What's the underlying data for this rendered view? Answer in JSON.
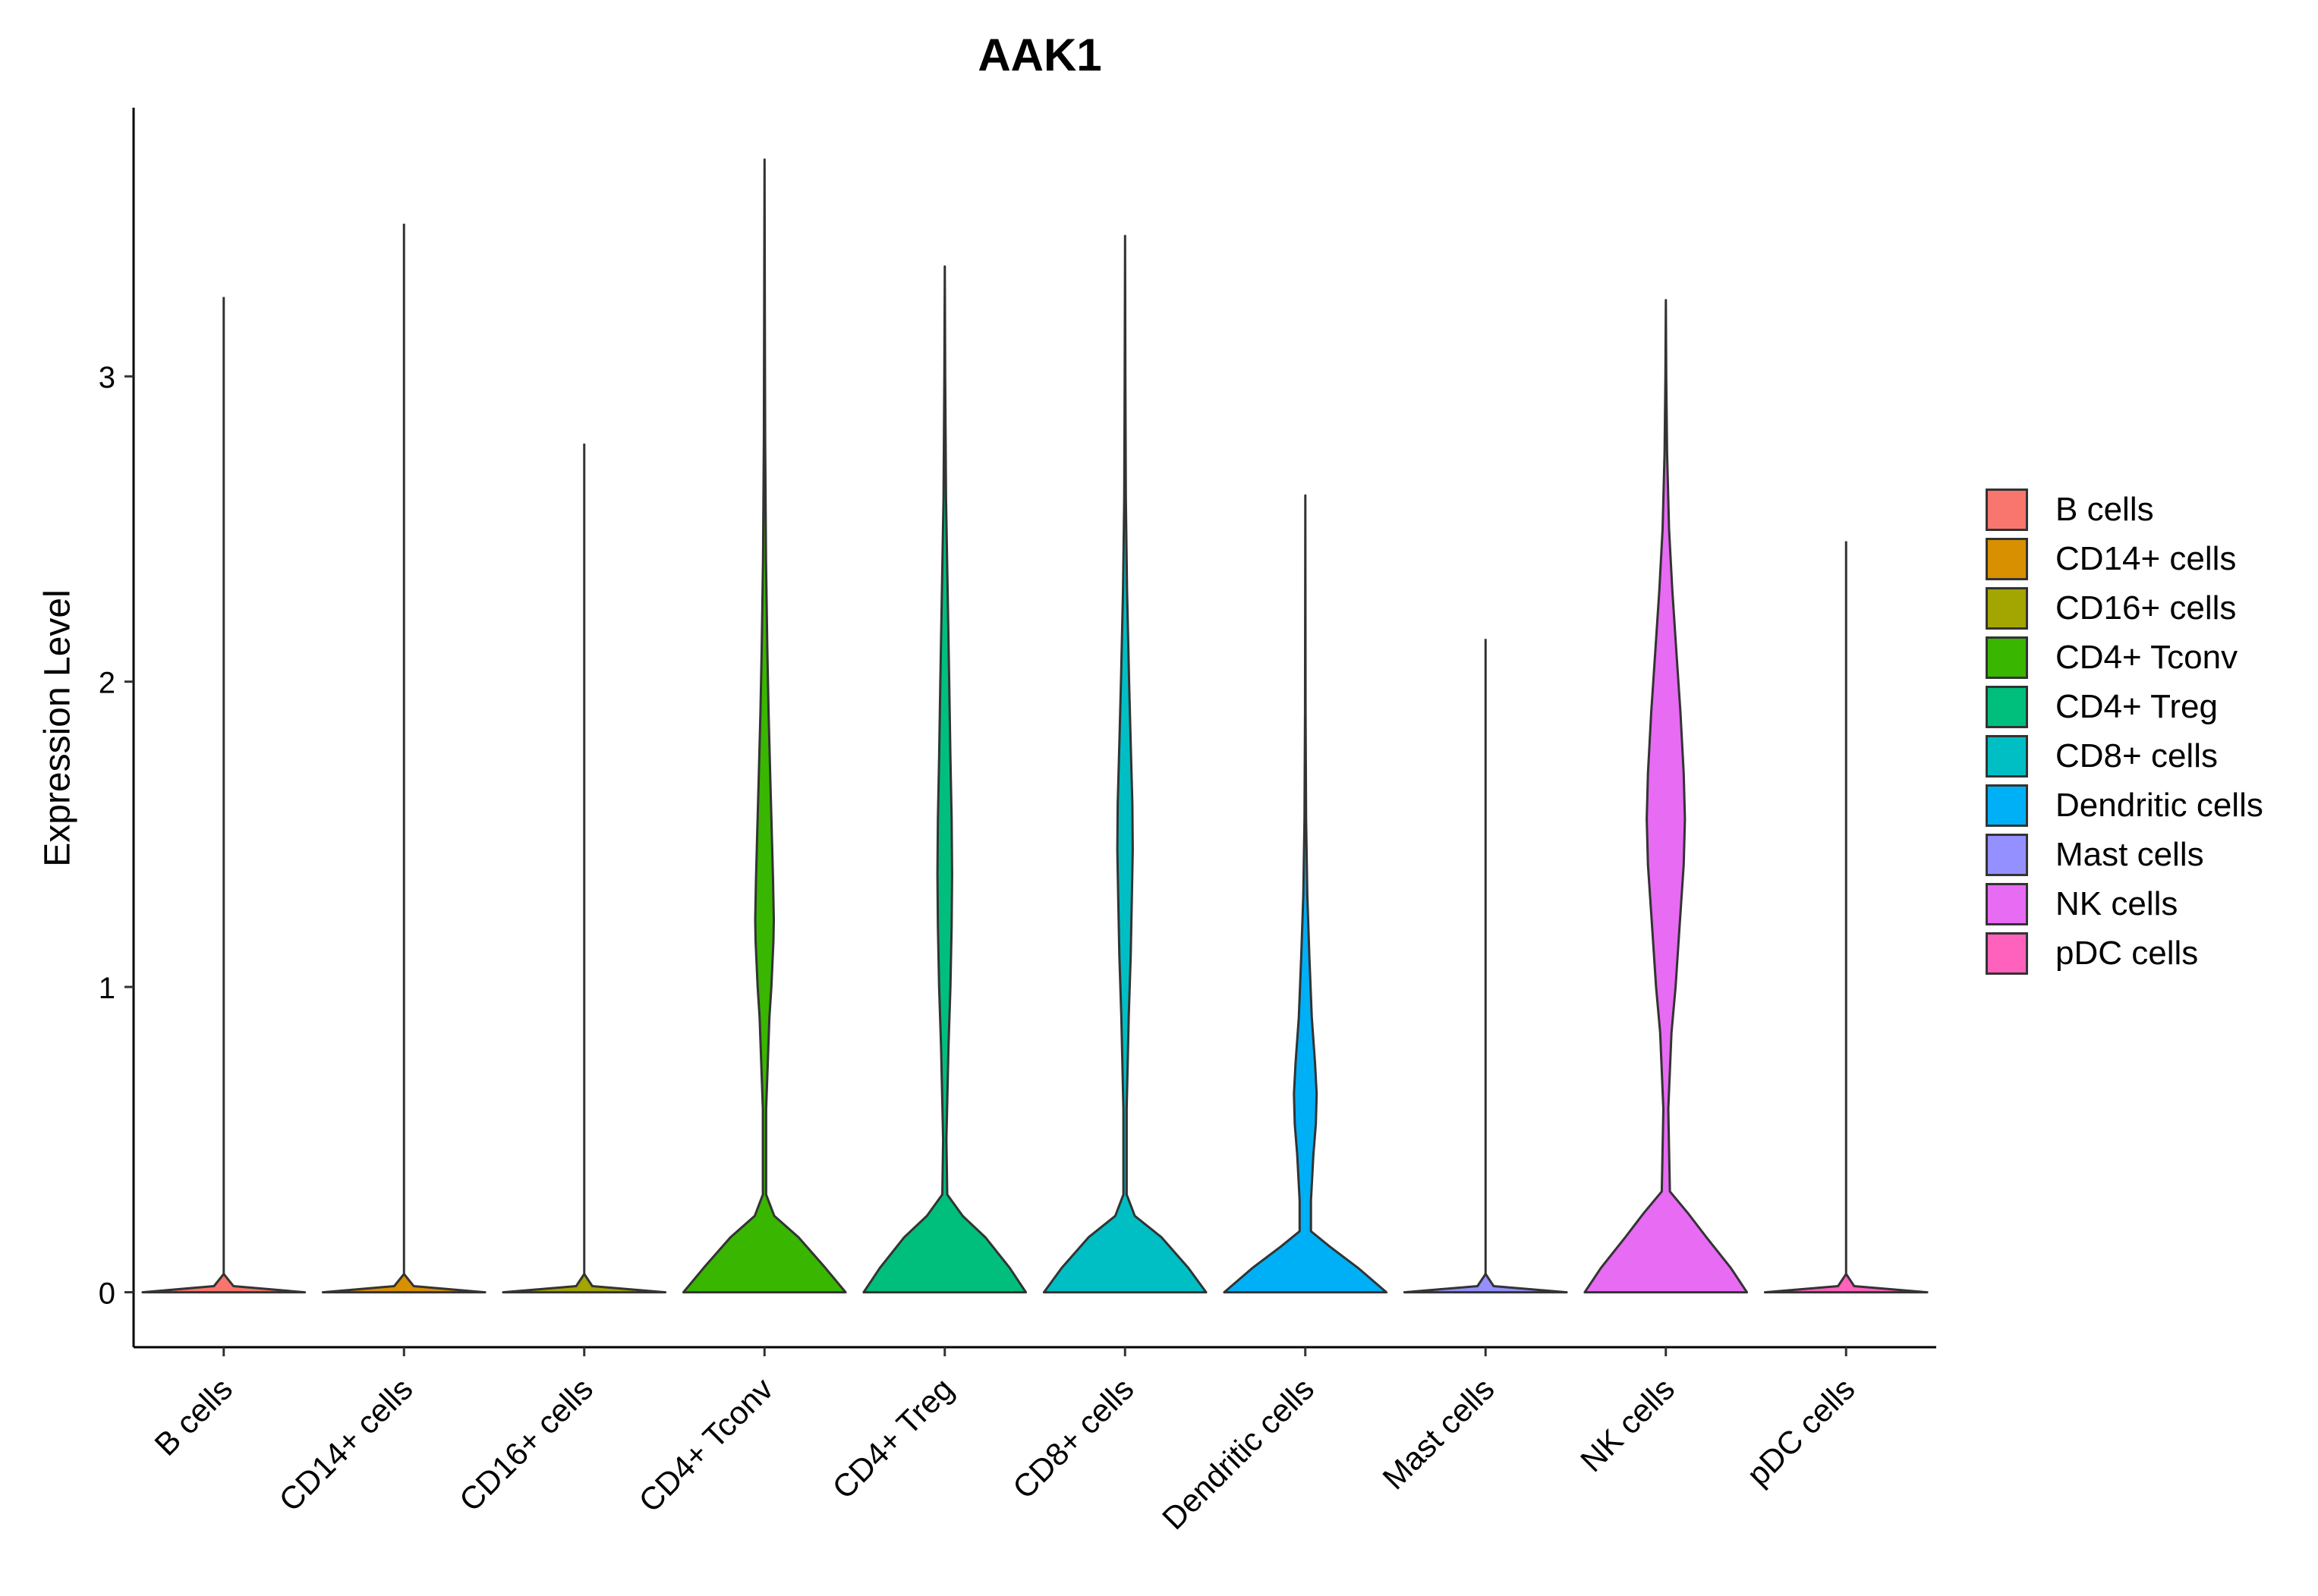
{
  "chart_data": {
    "type": "violin",
    "title": "AAK1",
    "xlabel": "",
    "ylabel": "Expression Level",
    "ylim": [
      -0.18,
      3.88
    ],
    "yticks": [
      0,
      1,
      2,
      3
    ],
    "categories": [
      "B cells",
      "CD14+ cells",
      "CD16+ cells",
      "CD4+ Tconv",
      "CD4+ Treg",
      "CD8+ cells",
      "Dendritic cells",
      "Mast cells",
      "NK cells",
      "pDC cells"
    ],
    "colors": [
      "#F8766D",
      "#D89000",
      "#A3A500",
      "#39B600",
      "#00BF7D",
      "#00BFC4",
      "#00B0F6",
      "#9590FF",
      "#E76BF3",
      "#FF62BC"
    ],
    "series": [
      {
        "name": "B cells",
        "max": 3.26,
        "density": [
          [
            0,
            1.0
          ],
          [
            0.02,
            0.12
          ],
          [
            0.06,
            0.0
          ]
        ]
      },
      {
        "name": "CD14+ cells",
        "max": 3.5,
        "density": [
          [
            0,
            1.0
          ],
          [
            0.02,
            0.12
          ],
          [
            0.06,
            0.0
          ]
        ]
      },
      {
        "name": "CD16+ cells",
        "max": 2.78,
        "density": [
          [
            0,
            1.0
          ],
          [
            0.02,
            0.1
          ],
          [
            0.06,
            0.0
          ]
        ]
      },
      {
        "name": "CD4+ Tconv",
        "max": 3.71,
        "density": [
          [
            0,
            1.0
          ],
          [
            0.08,
            0.75
          ],
          [
            0.18,
            0.42
          ],
          [
            0.25,
            0.12
          ],
          [
            0.32,
            0.02
          ],
          [
            0.6,
            0.02
          ],
          [
            0.9,
            0.06
          ],
          [
            1.0,
            0.085
          ],
          [
            1.15,
            0.11
          ],
          [
            1.22,
            0.115
          ],
          [
            1.35,
            0.105
          ],
          [
            1.5,
            0.09
          ],
          [
            1.7,
            0.07
          ],
          [
            1.9,
            0.05
          ],
          [
            2.1,
            0.035
          ],
          [
            2.4,
            0.018
          ],
          [
            2.8,
            0.008
          ],
          [
            3.2,
            0.004
          ],
          [
            3.71,
            0.0
          ]
        ]
      },
      {
        "name": "CD4+ Treg",
        "max": 3.36,
        "density": [
          [
            0,
            1.0
          ],
          [
            0.08,
            0.8
          ],
          [
            0.18,
            0.5
          ],
          [
            0.25,
            0.22
          ],
          [
            0.32,
            0.03
          ],
          [
            0.5,
            0.02
          ],
          [
            0.8,
            0.045
          ],
          [
            1.0,
            0.07
          ],
          [
            1.2,
            0.085
          ],
          [
            1.37,
            0.09
          ],
          [
            1.55,
            0.085
          ],
          [
            1.75,
            0.07
          ],
          [
            2.0,
            0.055
          ],
          [
            2.3,
            0.035
          ],
          [
            2.6,
            0.015
          ],
          [
            3.0,
            0.005
          ],
          [
            3.36,
            0.0
          ]
        ]
      },
      {
        "name": "CD8+ cells",
        "max": 3.46,
        "density": [
          [
            0,
            1.0
          ],
          [
            0.08,
            0.78
          ],
          [
            0.18,
            0.45
          ],
          [
            0.25,
            0.12
          ],
          [
            0.32,
            0.02
          ],
          [
            0.6,
            0.02
          ],
          [
            0.9,
            0.045
          ],
          [
            1.1,
            0.07
          ],
          [
            1.3,
            0.085
          ],
          [
            1.45,
            0.095
          ],
          [
            1.6,
            0.09
          ],
          [
            1.8,
            0.07
          ],
          [
            2.0,
            0.05
          ],
          [
            2.3,
            0.025
          ],
          [
            2.6,
            0.01
          ],
          [
            3.0,
            0.004
          ],
          [
            3.46,
            0.0
          ]
        ]
      },
      {
        "name": "Dendritic cells",
        "max": 2.61,
        "density": [
          [
            0,
            1.0
          ],
          [
            0.08,
            0.65
          ],
          [
            0.15,
            0.3
          ],
          [
            0.2,
            0.07
          ],
          [
            0.3,
            0.07
          ],
          [
            0.45,
            0.1
          ],
          [
            0.55,
            0.13
          ],
          [
            0.65,
            0.14
          ],
          [
            0.75,
            0.12
          ],
          [
            0.9,
            0.08
          ],
          [
            1.1,
            0.05
          ],
          [
            1.3,
            0.025
          ],
          [
            1.55,
            0.01
          ],
          [
            1.9,
            0.003
          ],
          [
            2.61,
            0.0
          ]
        ]
      },
      {
        "name": "Mast cells",
        "max": 2.14,
        "density": [
          [
            0,
            1.0
          ],
          [
            0.02,
            0.1
          ],
          [
            0.06,
            0.0
          ]
        ]
      },
      {
        "name": "NK cells",
        "max": 3.25,
        "density": [
          [
            0,
            1.0
          ],
          [
            0.08,
            0.8
          ],
          [
            0.18,
            0.5
          ],
          [
            0.26,
            0.27
          ],
          [
            0.33,
            0.05
          ],
          [
            0.6,
            0.03
          ],
          [
            0.85,
            0.07
          ],
          [
            1.0,
            0.12
          ],
          [
            1.2,
            0.17
          ],
          [
            1.4,
            0.22
          ],
          [
            1.55,
            0.235
          ],
          [
            1.7,
            0.22
          ],
          [
            1.9,
            0.18
          ],
          [
            2.1,
            0.13
          ],
          [
            2.3,
            0.08
          ],
          [
            2.5,
            0.04
          ],
          [
            2.75,
            0.015
          ],
          [
            3.0,
            0.005
          ],
          [
            3.25,
            0.0
          ]
        ]
      },
      {
        "name": "pDC cells",
        "max": 2.46,
        "density": [
          [
            0,
            1.0
          ],
          [
            0.02,
            0.1
          ],
          [
            0.06,
            0.0
          ]
        ]
      }
    ],
    "legend_position": "right"
  }
}
